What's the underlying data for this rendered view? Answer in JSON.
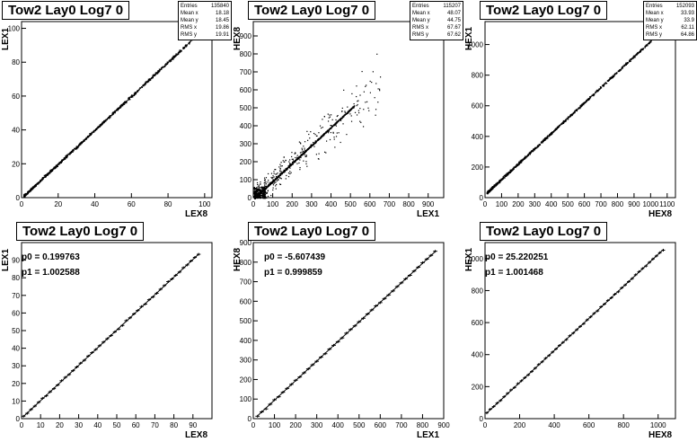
{
  "pads": [
    {
      "title": "Tow2 Lay0 Log7 0",
      "xlabel": "LEX8",
      "ylabel": "LEX1",
      "stats": [
        [
          "Entries",
          "135840"
        ],
        [
          "Mean x",
          "18.18"
        ],
        [
          "Mean y",
          "18.45"
        ],
        [
          "RMS x",
          "19.86"
        ],
        [
          "RMS y",
          "19.91"
        ]
      ],
      "chart_data": {
        "type": "scatter",
        "xlim": [
          0,
          104
        ],
        "ylim": [
          0,
          104
        ],
        "xticks": [
          0,
          20,
          40,
          60,
          80,
          100
        ],
        "yticks": [
          0,
          20,
          40,
          60,
          80,
          100
        ],
        "trend": {
          "p0": 0.2,
          "p1": 1.0026,
          "x_range": [
            1,
            94
          ]
        },
        "scatter_cloud": false
      }
    },
    {
      "title": "Tow2 Lay0 Log7 0",
      "xlabel": "LEX1",
      "ylabel": "HEX8",
      "stats": [
        [
          "Entries",
          "115207"
        ],
        [
          "Mean x",
          "48.07"
        ],
        [
          "Mean y",
          "44.75"
        ],
        [
          "RMS x",
          "67.67"
        ],
        [
          "RMS y",
          "67.62"
        ]
      ],
      "chart_data": {
        "type": "scatter",
        "xlim": [
          0,
          980
        ],
        "ylim": [
          0,
          980
        ],
        "xticks": [
          0,
          100,
          200,
          300,
          400,
          500,
          600,
          700,
          800,
          900
        ],
        "yticks": [
          0,
          100,
          200,
          300,
          400,
          500,
          600,
          700,
          800,
          900
        ],
        "trend": {
          "p0": -5.6,
          "p1": 1.0,
          "x_range": [
            5,
            520
          ]
        },
        "scatter_cloud": true
      }
    },
    {
      "title": "Tow2 Lay0 Log7 0",
      "xlabel": "HEX8",
      "ylabel": "HEX1",
      "stats": [
        [
          "Entries",
          "152093"
        ],
        [
          "Mean x",
          "33.93"
        ],
        [
          "Mean y",
          "33.9"
        ],
        [
          "RMS x",
          "62.11"
        ],
        [
          "RMS y",
          "64.86"
        ]
      ],
      "chart_data": {
        "type": "scatter",
        "xlim": [
          0,
          1150
        ],
        "ylim": [
          0,
          1150
        ],
        "xticks": [
          0,
          100,
          200,
          300,
          400,
          500,
          600,
          700,
          800,
          900,
          1000,
          1100
        ],
        "yticks": [
          0,
          200,
          400,
          600,
          800,
          1000
        ],
        "trend": {
          "p0": 25.2,
          "p1": 1.0015,
          "x_range": [
            10,
            1000
          ]
        },
        "scatter_cloud": false
      }
    },
    {
      "title": "Tow2 Lay0 Log7 0",
      "xlabel": "LEX8",
      "ylabel": "LEX1",
      "fit": {
        "p0": "p0 = 0.199763",
        "p1": "p1 = 1.002588"
      },
      "chart_data": {
        "type": "line",
        "xlim": [
          0,
          100
        ],
        "ylim": [
          0,
          100
        ],
        "xticks": [
          0,
          10,
          20,
          30,
          40,
          50,
          60,
          70,
          80,
          90
        ],
        "yticks": [
          0,
          10,
          20,
          30,
          40,
          50,
          60,
          70,
          80,
          90
        ],
        "fit": {
          "p0": 0.199763,
          "p1": 1.002588,
          "x_range": [
            1,
            93
          ]
        },
        "profile_step": 2
      }
    },
    {
      "title": "Tow2 Lay0 Log7 0",
      "xlabel": "LEX1",
      "ylabel": "HEX8",
      "fit": {
        "p0": "p0 = -5.607439",
        "p1": "p1 = 0.999859"
      },
      "chart_data": {
        "type": "line",
        "xlim": [
          0,
          900
        ],
        "ylim": [
          0,
          900
        ],
        "xticks": [
          0,
          100,
          200,
          300,
          400,
          500,
          600,
          700,
          800,
          900
        ],
        "yticks": [
          0,
          100,
          200,
          300,
          400,
          500,
          600,
          700,
          800,
          900
        ],
        "fit": {
          "p0": -5.607439,
          "p1": 0.999859,
          "x_range": [
            20,
            860
          ]
        },
        "profile_step": 20
      }
    },
    {
      "title": "Tow2 Lay0 Log7 0",
      "xlabel": "HEX8",
      "ylabel": "HEX1",
      "fit": {
        "p0": "p0 = 25.220251",
        "p1": "p1 = 1.001468"
      },
      "chart_data": {
        "type": "line",
        "xlim": [
          0,
          1100
        ],
        "ylim": [
          0,
          1100
        ],
        "xticks": [
          0,
          200,
          400,
          600,
          800,
          1000
        ],
        "yticks": [
          0,
          200,
          400,
          600,
          800,
          1000
        ],
        "fit": {
          "p0": 25.220251,
          "p1": 1.001468,
          "x_range": [
            10,
            1030
          ]
        },
        "profile_step": 20
      }
    }
  ]
}
